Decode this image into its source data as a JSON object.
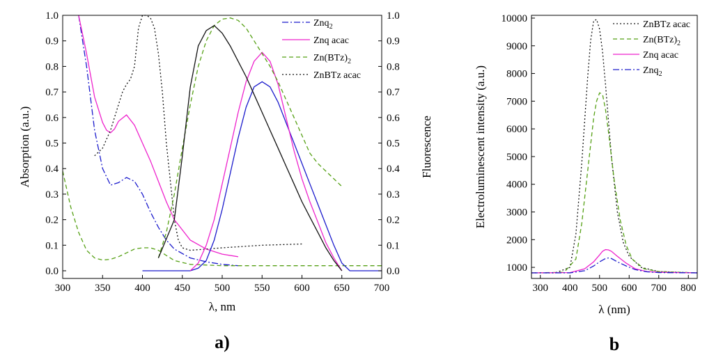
{
  "chart_data": [
    {
      "type": "line",
      "panel_label": "a)",
      "xlabel": "λ, nm",
      "ylabel": "Absorption (a.u.)",
      "y2label": "Fluorescence",
      "xlim": [
        300,
        700
      ],
      "ylim": [
        -0.03,
        1.0
      ],
      "y2lim": [
        -0.03,
        1.0
      ],
      "xticks": [
        "300",
        "350",
        "400",
        "450",
        "500",
        "550",
        "600",
        "650",
        "700"
      ],
      "yticks": [
        "0.0",
        "0.1",
        "0.2",
        "0.3",
        "0.4",
        "0.5",
        "0.6",
        "0.7",
        "0.8",
        "0.9",
        "1.0"
      ],
      "legend_position": "top-right",
      "legend": [
        {
          "label": "Znq",
          "sub": "2",
          "color": "#1a1acc",
          "dash": "9,3,2,3"
        },
        {
          "label": "Znq acac",
          "sub": "",
          "color": "#ee22cc",
          "dash": ""
        },
        {
          "label": "Zn(BTz)",
          "sub": "2",
          "color": "#55a014",
          "dash": "6,4"
        },
        {
          "label": "ZnBTz acac",
          "sub": "",
          "color": "#111111",
          "dash": "2,3"
        }
      ],
      "series": [
        {
          "name": "Znq2",
          "kind": "absorption",
          "color": "#1a1acc",
          "dash": "9,3,2,3",
          "x": [
            320,
            330,
            340,
            350,
            360,
            370,
            380,
            390,
            400,
            410,
            420,
            430,
            440,
            460,
            480,
            500,
            520
          ],
          "y": [
            1.0,
            0.8,
            0.55,
            0.4,
            0.335,
            0.345,
            0.365,
            0.35,
            0.3,
            0.23,
            0.17,
            0.12,
            0.085,
            0.05,
            0.035,
            0.025,
            0.02
          ]
        },
        {
          "name": "Znq acac",
          "kind": "absorption",
          "color": "#ee22cc",
          "dash": "",
          "x": [
            320,
            330,
            340,
            350,
            355,
            360,
            365,
            370,
            380,
            390,
            400,
            410,
            420,
            430,
            440,
            460,
            480,
            500,
            520
          ],
          "y": [
            1.0,
            0.85,
            0.68,
            0.58,
            0.55,
            0.54,
            0.555,
            0.585,
            0.61,
            0.57,
            0.5,
            0.43,
            0.35,
            0.27,
            0.2,
            0.12,
            0.085,
            0.065,
            0.055
          ]
        },
        {
          "name": "Zn(BTz)2",
          "kind": "absorption",
          "color": "#55a014",
          "dash": "6,4",
          "x": [
            300,
            310,
            320,
            330,
            340,
            350,
            360,
            370,
            380,
            390,
            400,
            410,
            420,
            430,
            440,
            460,
            500,
            550,
            600,
            650,
            700
          ],
          "y": [
            0.39,
            0.25,
            0.15,
            0.08,
            0.05,
            0.042,
            0.045,
            0.055,
            0.07,
            0.085,
            0.09,
            0.09,
            0.08,
            0.06,
            0.04,
            0.025,
            0.02,
            0.02,
            0.02,
            0.02,
            0.02
          ]
        },
        {
          "name": "ZnBTz acac",
          "kind": "absorption",
          "color": "#111111",
          "dash": "2,3",
          "x": [
            340,
            350,
            360,
            370,
            375,
            380,
            385,
            390,
            395,
            400,
            405,
            410,
            415,
            420,
            425,
            430,
            435,
            440,
            445,
            450,
            460,
            480,
            500,
            550,
            600
          ],
          "y": [
            0.45,
            0.48,
            0.55,
            0.65,
            0.7,
            0.73,
            0.75,
            0.8,
            0.95,
            1.0,
            1.0,
            0.99,
            0.95,
            0.85,
            0.7,
            0.5,
            0.35,
            0.2,
            0.12,
            0.09,
            0.08,
            0.085,
            0.09,
            0.1,
            0.105
          ]
        },
        {
          "name": "Znq2",
          "kind": "fluorescence",
          "color": "#1a1acc",
          "dash": "",
          "x": [
            400,
            420,
            440,
            460,
            470,
            480,
            490,
            500,
            510,
            520,
            530,
            540,
            550,
            560,
            570,
            580,
            590,
            600,
            610,
            620,
            630,
            640,
            650,
            660,
            700
          ],
          "y": [
            0,
            0,
            0,
            0,
            0.01,
            0.04,
            0.12,
            0.24,
            0.38,
            0.52,
            0.64,
            0.72,
            0.74,
            0.72,
            0.66,
            0.58,
            0.5,
            0.42,
            0.34,
            0.26,
            0.18,
            0.1,
            0.03,
            0.0,
            0.0
          ]
        },
        {
          "name": "Znq acac",
          "kind": "fluorescence",
          "color": "#ee22cc",
          "dash": "",
          "x": [
            460,
            470,
            480,
            490,
            500,
            510,
            520,
            530,
            540,
            550,
            560,
            570,
            580,
            590,
            600,
            610,
            620,
            630,
            640,
            650
          ],
          "y": [
            0,
            0.03,
            0.1,
            0.2,
            0.34,
            0.48,
            0.62,
            0.74,
            0.82,
            0.855,
            0.82,
            0.73,
            0.6,
            0.47,
            0.36,
            0.27,
            0.19,
            0.11,
            0.05,
            0.0
          ]
        },
        {
          "name": "Zn(BTz)2",
          "kind": "fluorescence",
          "color": "#55a014",
          "dash": "6,4",
          "x": [
            420,
            430,
            440,
            450,
            460,
            470,
            480,
            490,
            500,
            510,
            520,
            530,
            540,
            550,
            560,
            570,
            580,
            590,
            600,
            610,
            620,
            630,
            640,
            650
          ],
          "y": [
            0.05,
            0.15,
            0.3,
            0.48,
            0.65,
            0.8,
            0.9,
            0.96,
            0.985,
            0.99,
            0.98,
            0.95,
            0.9,
            0.85,
            0.8,
            0.74,
            0.67,
            0.6,
            0.53,
            0.46,
            0.42,
            0.39,
            0.36,
            0.33
          ]
        },
        {
          "name": "ZnBTz acac",
          "kind": "fluorescence",
          "color": "#111111",
          "dash": "",
          "x": [
            420,
            440,
            450,
            460,
            470,
            480,
            490,
            500,
            510,
            520,
            530,
            540,
            550,
            560,
            570,
            580,
            590,
            600,
            610,
            620,
            630,
            640,
            650
          ],
          "y": [
            0.05,
            0.2,
            0.45,
            0.72,
            0.88,
            0.94,
            0.96,
            0.93,
            0.88,
            0.82,
            0.76,
            0.69,
            0.62,
            0.55,
            0.48,
            0.41,
            0.34,
            0.27,
            0.21,
            0.15,
            0.09,
            0.04,
            0.0
          ]
        }
      ]
    },
    {
      "type": "line",
      "panel_label": "b",
      "xlabel": "λ (nm)",
      "ylabel": "Electroluminescent intensity (a.u.)",
      "xlim": [
        270,
        830
      ],
      "ylim": [
        600,
        10100
      ],
      "xticks": [
        "300",
        "400",
        "500",
        "600",
        "700",
        "800"
      ],
      "yticks": [
        "1000",
        "2000",
        "3000",
        "4000",
        "5000",
        "6000",
        "7000",
        "8000",
        "9000",
        "10000"
      ],
      "legend_position": "top-right",
      "legend": [
        {
          "label": "ZnBTz acac",
          "sub": "",
          "color": "#111111",
          "dash": "2,3"
        },
        {
          "label": "Zn(BTz)",
          "sub": "2",
          "color": "#55a014",
          "dash": "6,4"
        },
        {
          "label": "Znq acac",
          "sub": "",
          "color": "#ee22cc",
          "dash": ""
        },
        {
          "label": "Znq",
          "sub": "2",
          "color": "#1a1acc",
          "dash": "9,3,2,3"
        }
      ],
      "series": [
        {
          "name": "ZnBTz acac",
          "color": "#111111",
          "dash": "2,3",
          "x": [
            270,
            350,
            400,
            420,
            440,
            460,
            470,
            480,
            490,
            500,
            510,
            520,
            540,
            560,
            580,
            600,
            640,
            700,
            830
          ],
          "y": [
            800,
            800,
            1000,
            2200,
            4800,
            7900,
            9200,
            9900,
            9950,
            9600,
            8800,
            7600,
            5000,
            3000,
            1900,
            1400,
            1000,
            850,
            800
          ]
        },
        {
          "name": "Zn(BTz)2",
          "color": "#55a014",
          "dash": "6,4",
          "x": [
            270,
            380,
            420,
            440,
            460,
            480,
            490,
            500,
            510,
            520,
            530,
            550,
            570,
            590,
            610,
            650,
            700,
            830
          ],
          "y": [
            800,
            820,
            1300,
            2600,
            4500,
            6400,
            7000,
            7300,
            7250,
            6700,
            5900,
            4100,
            2700,
            1800,
            1300,
            950,
            850,
            800
          ]
        },
        {
          "name": "Znq acac",
          "color": "#ee22cc",
          "dash": "",
          "x": [
            270,
            400,
            450,
            480,
            500,
            510,
            520,
            530,
            540,
            560,
            590,
            620,
            660,
            700,
            830
          ],
          "y": [
            800,
            810,
            950,
            1200,
            1450,
            1580,
            1640,
            1630,
            1580,
            1400,
            1150,
            950,
            850,
            820,
            800
          ]
        },
        {
          "name": "Znq2",
          "color": "#1a1acc",
          "dash": "9,3,2,3",
          "x": [
            270,
            400,
            450,
            480,
            500,
            520,
            530,
            540,
            560,
            590,
            620,
            660,
            700,
            830
          ],
          "y": [
            800,
            800,
            880,
            1050,
            1200,
            1320,
            1340,
            1320,
            1200,
            1050,
            920,
            840,
            810,
            800
          ]
        }
      ]
    }
  ]
}
